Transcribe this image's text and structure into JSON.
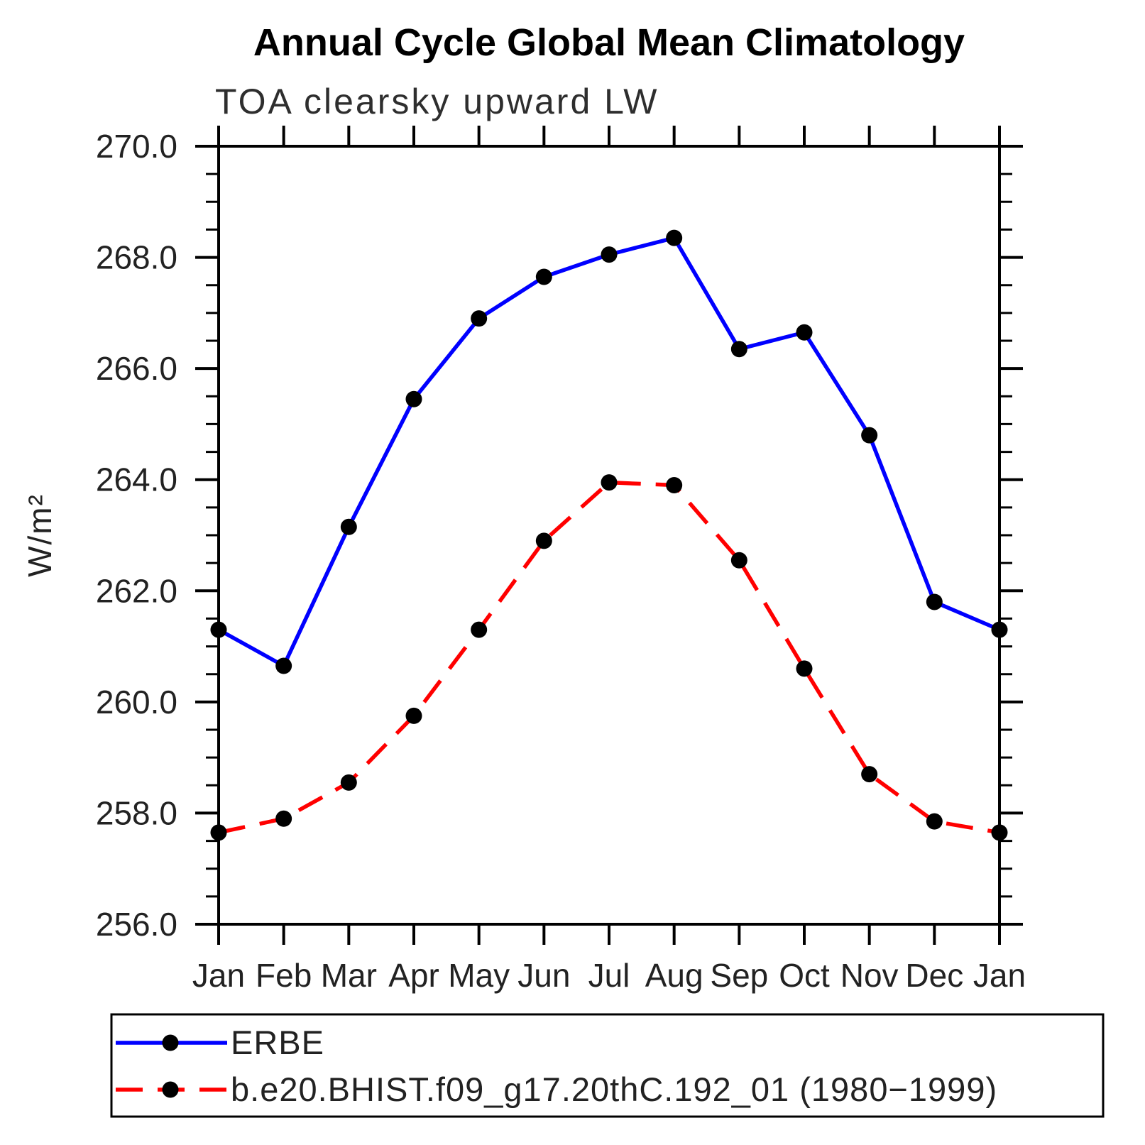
{
  "chart_data": {
    "type": "line",
    "title": "Annual Cycle Global Mean Climatology",
    "subtitle": "TOA clearsky upward LW",
    "ylabel": "W/m²",
    "xlabel": "",
    "categories": [
      "Jan",
      "Feb",
      "Mar",
      "Apr",
      "May",
      "Jun",
      "Jul",
      "Aug",
      "Sep",
      "Oct",
      "Nov",
      "Dec",
      "Jan"
    ],
    "ylim": [
      256.0,
      270.0
    ],
    "ytick_major": 2.0,
    "ytick_minor": 0.5,
    "ytick_labels": [
      "256.0",
      "258.0",
      "260.0",
      "262.0",
      "264.0",
      "266.0",
      "268.0",
      "270.0"
    ],
    "grid": false,
    "legend_position": "bottom",
    "axis_color": "#000000",
    "marker": {
      "shape": "circle",
      "color": "#000000"
    },
    "series": [
      {
        "name": "ERBE",
        "color": "#0000ff",
        "line_style": "solid",
        "values": [
          261.3,
          260.65,
          263.15,
          265.45,
          266.9,
          267.65,
          268.05,
          268.35,
          266.35,
          266.65,
          264.8,
          261.8,
          261.3
        ]
      },
      {
        "name": "b.e20.BHIST.f09_g17.20thC.192_01 (1980−1999)",
        "color": "#ff0000",
        "line_style": "dashed",
        "values": [
          257.65,
          257.9,
          258.55,
          259.75,
          261.3,
          262.9,
          263.95,
          263.9,
          262.55,
          260.6,
          258.7,
          257.85,
          257.65
        ]
      }
    ]
  }
}
